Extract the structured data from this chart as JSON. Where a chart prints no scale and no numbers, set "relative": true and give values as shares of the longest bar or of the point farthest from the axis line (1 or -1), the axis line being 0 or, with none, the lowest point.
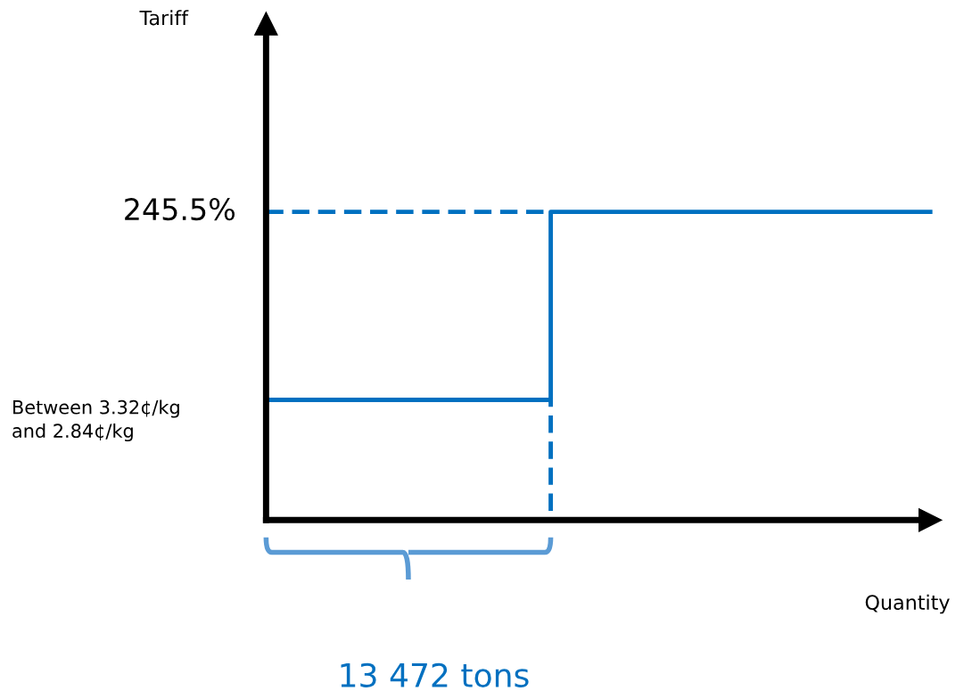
{
  "chart_data": {
    "type": "line",
    "relative": true,
    "xlabel": "Quantity",
    "categories": [
      null,
      null,
      null,
      null,
      null,
      null,
      null,
      null
    ],
    "series": [
      {
        "type": "step",
        "color": "#0070c0",
        "line_style": "solid",
        "values": [
          0.39,
          0.39,
          0.39,
          1,
          1,
          1,
          1,
          1
        ]
      },
      {
        "color": "#0070c0",
        "line_style": "dashed",
        "values": [
          1,
          1,
          1,
          1,
          null,
          null,
          null,
          null
        ]
      },
      {
        "type": "step",
        "color": "#0070c0",
        "line_style": "dashed",
        "values": [
          null,
          null,
          0,
          0.39,
          null,
          null,
          null,
          null
        ]
      }
    ],
    "annotations": [
      "Tariff",
      "245.5%",
      "Between 3.32¢/kg\nand 2.84¢/kg",
      "13 472 tons"
    ]
  }
}
